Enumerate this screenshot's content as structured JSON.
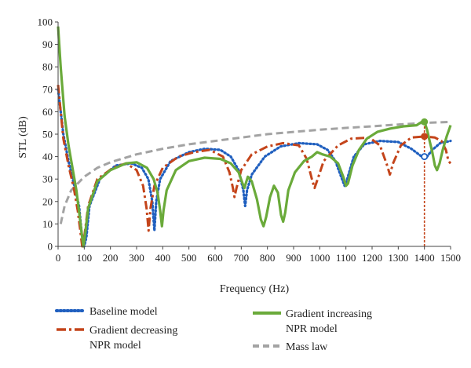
{
  "chart_data": {
    "type": "line",
    "xlabel": "Frequency (Hz)",
    "ylabel": "STL (dB)",
    "xlim": [
      0,
      1500
    ],
    "ylim": [
      0,
      100
    ],
    "xticks": [
      0,
      100,
      200,
      300,
      400,
      500,
      600,
      700,
      800,
      900,
      1000,
      1100,
      1200,
      1300,
      1400,
      1500
    ],
    "yticks": [
      0,
      10,
      20,
      30,
      40,
      50,
      60,
      70,
      80,
      90,
      100
    ],
    "grid": false,
    "legend_position": "bottom",
    "marker_line": {
      "x": 1400,
      "from_y": 0,
      "to_y": 55,
      "color": "#c4441a"
    },
    "markers": [
      {
        "series": 0,
        "x": 1400,
        "y": 40
      },
      {
        "series": 1,
        "x": 1400,
        "y": 49
      },
      {
        "series": 2,
        "x": 1400,
        "y": 55.5
      }
    ],
    "series": [
      {
        "name": "Baseline model",
        "color": "#1f5fbf",
        "style": "dotted",
        "points": [
          [
            0,
            70
          ],
          [
            20,
            50
          ],
          [
            40,
            38
          ],
          [
            60,
            28
          ],
          [
            80,
            18
          ],
          [
            90,
            6
          ],
          [
            100,
            0
          ],
          [
            108,
            4
          ],
          [
            120,
            18
          ],
          [
            160,
            30
          ],
          [
            220,
            36
          ],
          [
            280,
            37
          ],
          [
            320,
            35
          ],
          [
            345,
            30
          ],
          [
            360,
            20
          ],
          [
            368,
            7
          ],
          [
            375,
            20
          ],
          [
            390,
            30
          ],
          [
            430,
            38
          ],
          [
            500,
            42
          ],
          [
            560,
            43.5
          ],
          [
            620,
            43
          ],
          [
            660,
            40
          ],
          [
            690,
            34
          ],
          [
            708,
            25
          ],
          [
            715,
            18
          ],
          [
            722,
            25
          ],
          [
            740,
            32
          ],
          [
            790,
            40
          ],
          [
            850,
            44.5
          ],
          [
            920,
            46
          ],
          [
            990,
            45.5
          ],
          [
            1030,
            43
          ],
          [
            1060,
            38
          ],
          [
            1085,
            30
          ],
          [
            1095,
            27
          ],
          [
            1105,
            30
          ],
          [
            1130,
            40
          ],
          [
            1170,
            45.5
          ],
          [
            1230,
            47
          ],
          [
            1300,
            46.5
          ],
          [
            1350,
            43.5
          ],
          [
            1390,
            40
          ],
          [
            1410,
            40
          ],
          [
            1430,
            43
          ],
          [
            1460,
            46
          ],
          [
            1500,
            47
          ]
        ]
      },
      {
        "name": "Gradient decreasing NPR model",
        "color": "#c4441a",
        "style": "dashdot",
        "points": [
          [
            0,
            72
          ],
          [
            20,
            48
          ],
          [
            40,
            36
          ],
          [
            60,
            26
          ],
          [
            75,
            16
          ],
          [
            85,
            7
          ],
          [
            92,
            0
          ],
          [
            100,
            4
          ],
          [
            115,
            18
          ],
          [
            150,
            30
          ],
          [
            210,
            35
          ],
          [
            260,
            37
          ],
          [
            300,
            34
          ],
          [
            325,
            27
          ],
          [
            338,
            17
          ],
          [
            346,
            7
          ],
          [
            353,
            17
          ],
          [
            368,
            27
          ],
          [
            400,
            35
          ],
          [
            460,
            40
          ],
          [
            520,
            42
          ],
          [
            580,
            43
          ],
          [
            630,
            40
          ],
          [
            655,
            33
          ],
          [
            668,
            26
          ],
          [
            674,
            22
          ],
          [
            682,
            26
          ],
          [
            700,
            34
          ],
          [
            740,
            41
          ],
          [
            800,
            44.5
          ],
          [
            860,
            46
          ],
          [
            920,
            45
          ],
          [
            950,
            39
          ],
          [
            970,
            30
          ],
          [
            980,
            26
          ],
          [
            992,
            30
          ],
          [
            1015,
            38
          ],
          [
            1070,
            45
          ],
          [
            1120,
            48
          ],
          [
            1190,
            48.5
          ],
          [
            1230,
            45
          ],
          [
            1255,
            37
          ],
          [
            1268,
            32
          ],
          [
            1280,
            37
          ],
          [
            1310,
            45
          ],
          [
            1350,
            48.5
          ],
          [
            1400,
            49
          ],
          [
            1440,
            48.5
          ],
          [
            1465,
            47
          ],
          [
            1482,
            43
          ],
          [
            1492,
            38
          ],
          [
            1500,
            37
          ]
        ]
      },
      {
        "name": "Gradient increasing NPR model",
        "color": "#6aaa3a",
        "style": "solid",
        "points": [
          [
            0,
            98
          ],
          [
            10,
            80
          ],
          [
            25,
            58
          ],
          [
            40,
            45
          ],
          [
            55,
            35
          ],
          [
            70,
            25
          ],
          [
            82,
            14
          ],
          [
            92,
            4
          ],
          [
            97,
            0
          ],
          [
            103,
            5
          ],
          [
            115,
            17
          ],
          [
            150,
            29
          ],
          [
            200,
            34
          ],
          [
            260,
            37
          ],
          [
            300,
            37.5
          ],
          [
            340,
            35
          ],
          [
            365,
            30
          ],
          [
            380,
            24
          ],
          [
            390,
            16
          ],
          [
            397,
            9
          ],
          [
            403,
            16
          ],
          [
            415,
            25
          ],
          [
            450,
            34
          ],
          [
            500,
            38
          ],
          [
            560,
            39.5
          ],
          [
            620,
            39
          ],
          [
            660,
            37
          ],
          [
            690,
            33
          ],
          [
            705,
            28
          ],
          [
            712,
            26
          ],
          [
            725,
            31
          ],
          [
            740,
            29
          ],
          [
            760,
            21
          ],
          [
            775,
            12
          ],
          [
            785,
            9
          ],
          [
            795,
            13
          ],
          [
            810,
            22
          ],
          [
            825,
            27
          ],
          [
            840,
            24
          ],
          [
            852,
            14
          ],
          [
            860,
            11
          ],
          [
            868,
            15
          ],
          [
            880,
            25
          ],
          [
            905,
            33
          ],
          [
            940,
            38
          ],
          [
            970,
            40
          ],
          [
            990,
            42
          ],
          [
            1010,
            41
          ],
          [
            1040,
            40
          ],
          [
            1070,
            37
          ],
          [
            1090,
            31
          ],
          [
            1100,
            27
          ],
          [
            1108,
            28
          ],
          [
            1125,
            36
          ],
          [
            1150,
            43
          ],
          [
            1180,
            48
          ],
          [
            1220,
            51
          ],
          [
            1270,
            52.5
          ],
          [
            1320,
            53.5
          ],
          [
            1370,
            54
          ],
          [
            1390,
            55.5
          ],
          [
            1400,
            55.5
          ],
          [
            1410,
            52
          ],
          [
            1420,
            47
          ],
          [
            1430,
            42
          ],
          [
            1440,
            36
          ],
          [
            1448,
            34
          ],
          [
            1458,
            37
          ],
          [
            1470,
            43
          ],
          [
            1485,
            49
          ],
          [
            1500,
            54
          ]
        ]
      },
      {
        "name": "Mass law",
        "color": "#a3a3a3",
        "style": "dashed",
        "points": [
          [
            10,
            10
          ],
          [
            25,
            18
          ],
          [
            50,
            25
          ],
          [
            100,
            31
          ],
          [
            150,
            35
          ],
          [
            200,
            37.5
          ],
          [
            300,
            41
          ],
          [
            400,
            43.5
          ],
          [
            500,
            45.5
          ],
          [
            600,
            47
          ],
          [
            700,
            48.5
          ],
          [
            800,
            50
          ],
          [
            900,
            51
          ],
          [
            1000,
            52
          ],
          [
            1100,
            52.8
          ],
          [
            1200,
            53.5
          ],
          [
            1300,
            54.3
          ],
          [
            1400,
            55
          ],
          [
            1500,
            55.5
          ]
        ]
      }
    ]
  }
}
